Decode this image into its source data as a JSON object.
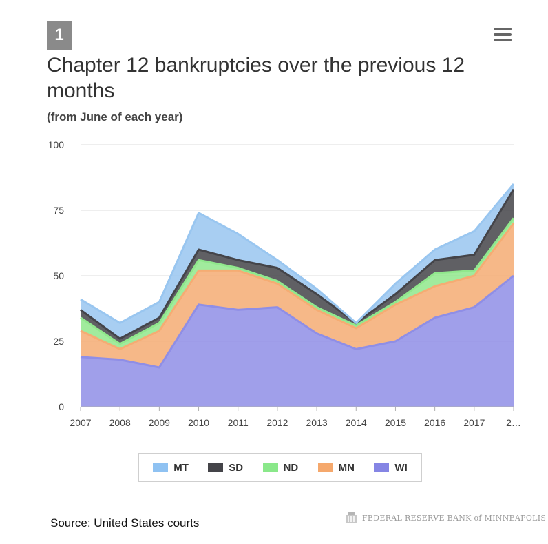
{
  "badge": "1",
  "menu_icon": "hamburger-menu-icon",
  "chart_data": {
    "type": "area",
    "stacked": true,
    "title": "Chapter 12 bankruptcies over the previous 12 months",
    "subtitle": "(from June of each year)",
    "xlabel": "",
    "ylabel": "",
    "categories": [
      "2007",
      "2008",
      "2009",
      "2010",
      "2011",
      "2012",
      "2013",
      "2014",
      "2015",
      "2016",
      "2017",
      "2…"
    ],
    "ylim": [
      0,
      100
    ],
    "yticks": [
      0,
      25,
      50,
      75,
      100
    ],
    "grid": true,
    "legend_position": "bottom",
    "series": [
      {
        "name": "WI",
        "color": "#8f8ee6",
        "values": [
          19,
          18,
          15,
          39,
          37,
          38,
          28,
          22,
          25,
          34,
          38,
          50
        ]
      },
      {
        "name": "MN",
        "color": "#f5ac73",
        "values": [
          10,
          4,
          14,
          13,
          15,
          9,
          9,
          8,
          14,
          12,
          12,
          20
        ]
      },
      {
        "name": "ND",
        "color": "#90e88c",
        "values": [
          5,
          2,
          3,
          4,
          1,
          1,
          1,
          1,
          1,
          5,
          2,
          2
        ]
      },
      {
        "name": "SD",
        "color": "#444449",
        "values": [
          3,
          2,
          2,
          4,
          3,
          5,
          5,
          1,
          3,
          5,
          6,
          11
        ]
      },
      {
        "name": "MT",
        "color": "#99c6f0",
        "values": [
          4,
          6,
          6,
          14,
          10,
          3,
          2,
          0,
          4,
          4,
          9,
          2
        ]
      }
    ],
    "legend_order": [
      "MT",
      "SD",
      "ND",
      "MN",
      "WI"
    ]
  },
  "legend": [
    {
      "label": "MT",
      "color": "#8fc2f2"
    },
    {
      "label": "SD",
      "color": "#444449"
    },
    {
      "label": "ND",
      "color": "#8ae88a"
    },
    {
      "label": "MN",
      "color": "#f5a86c"
    },
    {
      "label": "WI",
      "color": "#8585e4"
    }
  ],
  "source": "Source: United States courts",
  "logo_text": "FEDERAL RESERVE BANK of MINNEAPOLIS"
}
